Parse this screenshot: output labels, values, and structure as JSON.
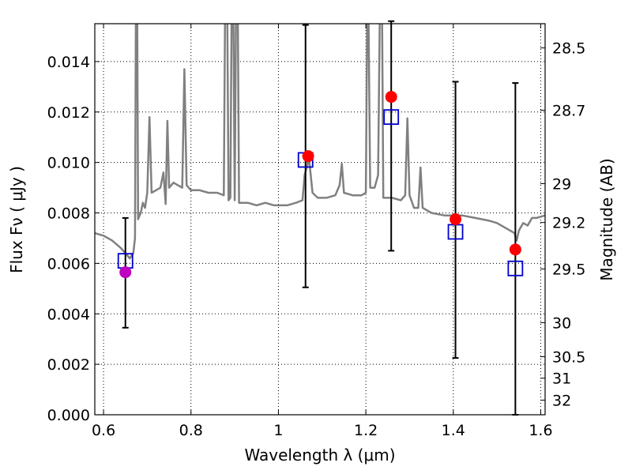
{
  "chart_data": {
    "type": "scatter",
    "title": "",
    "xlabel": "Wavelength  λ (μm)",
    "ylabel": "Flux  Fν  ( μJy )",
    "y2label": "Magnitude (AB)",
    "xlim": [
      0.58,
      1.61
    ],
    "ylim": [
      0.0,
      0.0155
    ],
    "grid": true,
    "x_ticks": [
      0.6,
      0.8,
      1.0,
      1.2,
      1.4,
      1.6
    ],
    "x_tick_labels": [
      "0.6",
      "0.8",
      "1",
      "1.2",
      "1.4",
      "1.6"
    ],
    "y_ticks": [
      0.0,
      0.002,
      0.004,
      0.006,
      0.008,
      0.01,
      0.012,
      0.014
    ],
    "y_tick_labels": [
      "0.000",
      "0.002",
      "0.004",
      "0.006",
      "0.008",
      "0.010",
      "0.012",
      "0.014"
    ],
    "y2_ticks": [
      {
        "label": "28.5",
        "flux": 0.01454
      },
      {
        "label": "28.7",
        "flux": 0.01207
      },
      {
        "label": "29",
        "flux": 0.00916
      },
      {
        "label": "29.2",
        "flux": 0.00762
      },
      {
        "label": "29.5",
        "flux": 0.00578
      },
      {
        "label": "30",
        "flux": 0.00365
      },
      {
        "label": "30.5",
        "flux": 0.0023
      },
      {
        "label": "31",
        "flux": 0.00145
      },
      {
        "label": "32",
        "flux": 0.00058
      }
    ],
    "model_spectrum": {
      "color": "#808080",
      "points": [
        [
          0.58,
          0.0072
        ],
        [
          0.6,
          0.0071
        ],
        [
          0.62,
          0.0069
        ],
        [
          0.64,
          0.0066
        ],
        [
          0.65,
          0.0064
        ],
        [
          0.66,
          0.0062
        ],
        [
          0.668,
          0.0064
        ],
        [
          0.672,
          0.007
        ],
        [
          0.674,
          0.016
        ],
        [
          0.677,
          0.016
        ],
        [
          0.679,
          0.00775
        ],
        [
          0.685,
          0.008
        ],
        [
          0.69,
          0.0084
        ],
        [
          0.695,
          0.0082
        ],
        [
          0.7,
          0.0088
        ],
        [
          0.705,
          0.0118
        ],
        [
          0.71,
          0.0088
        ],
        [
          0.72,
          0.0089
        ],
        [
          0.73,
          0.009
        ],
        [
          0.737,
          0.0096
        ],
        [
          0.742,
          0.00835
        ],
        [
          0.746,
          0.01165
        ],
        [
          0.75,
          0.009
        ],
        [
          0.76,
          0.0092
        ],
        [
          0.77,
          0.0091
        ],
        [
          0.78,
          0.009
        ],
        [
          0.785,
          0.0137
        ],
        [
          0.79,
          0.0091
        ],
        [
          0.8,
          0.0089
        ],
        [
          0.82,
          0.0089
        ],
        [
          0.84,
          0.0088
        ],
        [
          0.86,
          0.0088
        ],
        [
          0.875,
          0.0087
        ],
        [
          0.878,
          0.016
        ],
        [
          0.883,
          0.016
        ],
        [
          0.886,
          0.0085
        ],
        [
          0.89,
          0.0086
        ],
        [
          0.893,
          0.016
        ],
        [
          0.897,
          0.016
        ],
        [
          0.9,
          0.0085
        ],
        [
          0.903,
          0.016
        ],
        [
          0.907,
          0.016
        ],
        [
          0.91,
          0.0084
        ],
        [
          0.93,
          0.0084
        ],
        [
          0.95,
          0.0083
        ],
        [
          0.97,
          0.0084
        ],
        [
          0.99,
          0.0083
        ],
        [
          1.0,
          0.0083
        ],
        [
          1.02,
          0.0083
        ],
        [
          1.04,
          0.0084
        ],
        [
          1.055,
          0.0085
        ],
        [
          1.06,
          0.0095
        ],
        [
          1.07,
          0.01015
        ],
        [
          1.078,
          0.0088
        ],
        [
          1.09,
          0.0086
        ],
        [
          1.11,
          0.0086
        ],
        [
          1.13,
          0.0087
        ],
        [
          1.14,
          0.0091
        ],
        [
          1.145,
          0.00995
        ],
        [
          1.15,
          0.0088
        ],
        [
          1.17,
          0.0087
        ],
        [
          1.19,
          0.0087
        ],
        [
          1.2,
          0.0088
        ],
        [
          1.203,
          0.016
        ],
        [
          1.206,
          0.016
        ],
        [
          1.21,
          0.009
        ],
        [
          1.22,
          0.009
        ],
        [
          1.228,
          0.0095
        ],
        [
          1.232,
          0.016
        ],
        [
          1.237,
          0.016
        ],
        [
          1.24,
          0.0086
        ],
        [
          1.26,
          0.0086
        ],
        [
          1.28,
          0.0085
        ],
        [
          1.29,
          0.0087
        ],
        [
          1.295,
          0.01175
        ],
        [
          1.3,
          0.0087
        ],
        [
          1.31,
          0.0082
        ],
        [
          1.32,
          0.0082
        ],
        [
          1.325,
          0.0098
        ],
        [
          1.33,
          0.0082
        ],
        [
          1.35,
          0.008
        ],
        [
          1.38,
          0.0079
        ],
        [
          1.4,
          0.0079
        ],
        [
          1.42,
          0.0079
        ],
        [
          1.45,
          0.0078
        ],
        [
          1.48,
          0.0077
        ],
        [
          1.5,
          0.0076
        ],
        [
          1.52,
          0.0074
        ],
        [
          1.54,
          0.0072
        ],
        [
          1.545,
          0.0069
        ],
        [
          1.55,
          0.0073
        ],
        [
          1.56,
          0.0076
        ],
        [
          1.57,
          0.0075
        ],
        [
          1.58,
          0.0078
        ],
        [
          1.59,
          0.0078
        ],
        [
          1.61,
          0.0079
        ]
      ]
    },
    "observed_points": [
      {
        "x": 0.65,
        "y": 0.00565,
        "color": "#bf00bf"
      },
      {
        "x": 1.068,
        "y": 0.01025,
        "color": "#ff0000"
      },
      {
        "x": 1.258,
        "y": 0.0126,
        "color": "#ff0000"
      },
      {
        "x": 1.405,
        "y": 0.00775,
        "color": "#ff0000"
      },
      {
        "x": 1.542,
        "y": 0.00655,
        "color": "#ff0000"
      }
    ],
    "error_bars": [
      {
        "x": 0.65,
        "low": 0.00345,
        "high": 0.0078
      },
      {
        "x": 1.062,
        "low": 0.00505,
        "high": 0.01545
      },
      {
        "x": 1.258,
        "low": 0.0065,
        "high": 0.0156
      },
      {
        "x": 1.405,
        "low": 0.00225,
        "high": 0.0132
      },
      {
        "x": 1.542,
        "low": 0.0,
        "high": 0.01315
      }
    ],
    "model_points": [
      {
        "x": 0.65,
        "y": 0.0061,
        "color": "#0000cc"
      },
      {
        "x": 1.062,
        "y": 0.0101,
        "color": "#0000cc"
      },
      {
        "x": 1.258,
        "y": 0.0118,
        "color": "#0000cc"
      },
      {
        "x": 1.405,
        "y": 0.00725,
        "color": "#0000cc"
      },
      {
        "x": 1.542,
        "y": 0.0058,
        "color": "#0000cc"
      }
    ]
  }
}
